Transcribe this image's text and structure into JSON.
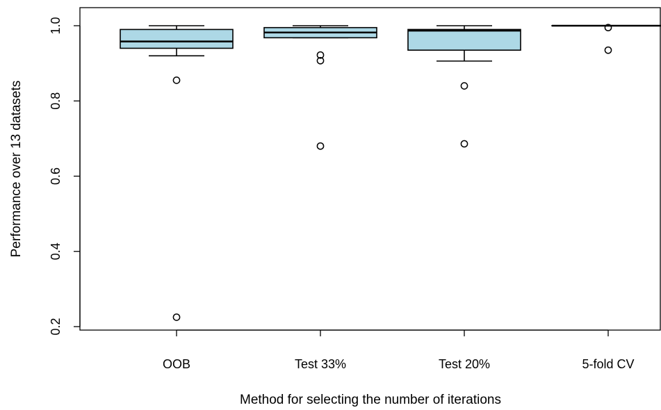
{
  "chart_data": {
    "type": "boxplot",
    "title": "",
    "xlabel": "Method for selecting the number of iterations",
    "ylabel": "Performance over 13 datasets",
    "ylim": [
      0.2,
      1.0
    ],
    "yticks": [
      "0.2",
      "0.4",
      "0.6",
      "0.8",
      "1.0"
    ],
    "ytick_values": [
      0.2,
      0.4,
      0.6,
      0.8,
      1.0
    ],
    "categories": [
      "OOB",
      "Test 33%",
      "Test 20%",
      "5-fold CV"
    ],
    "box_color": "#add8e6",
    "boxes": [
      {
        "name": "OOB",
        "whisker_low": 0.92,
        "q1": 0.94,
        "median": 0.958,
        "q3": 0.99,
        "whisker_high": 1.0,
        "outliers": [
          0.855,
          0.225
        ]
      },
      {
        "name": "Test 33%",
        "whisker_low": 0.968,
        "q1": 0.968,
        "median": 0.982,
        "q3": 0.995,
        "whisker_high": 1.0,
        "outliers": [
          0.922,
          0.907,
          0.68
        ]
      },
      {
        "name": "Test 20%",
        "whisker_low": 0.906,
        "q1": 0.935,
        "median": 0.987,
        "q3": 0.99,
        "whisker_high": 1.0,
        "outliers": [
          0.84,
          0.686
        ]
      },
      {
        "name": "5-fold CV",
        "whisker_low": 1.0,
        "q1": 1.0,
        "median": 1.0,
        "q3": 1.0,
        "whisker_high": 1.0,
        "outliers": [
          0.995,
          0.935
        ]
      }
    ]
  }
}
